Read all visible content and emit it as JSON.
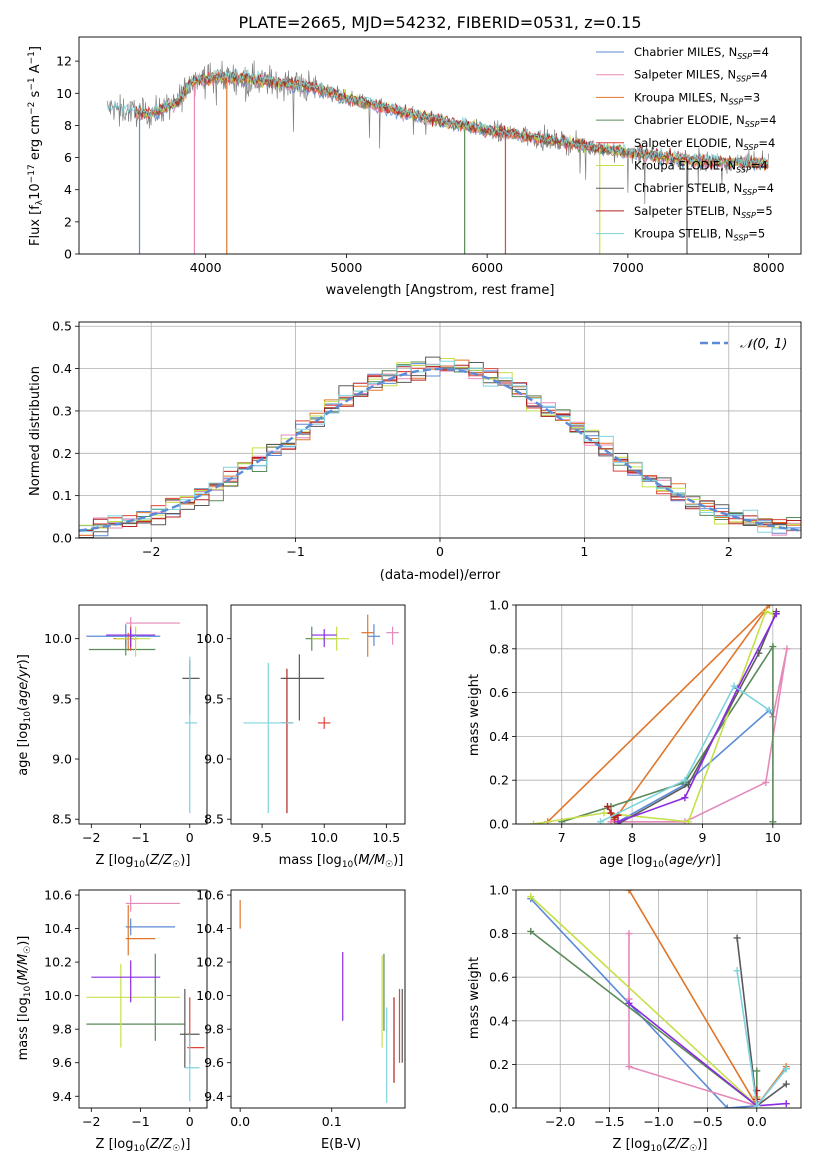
{
  "title": "PLATE=2665, MJD=54232, FIBERID=0531, z=0.15",
  "colors": [
    "#5b8bd6",
    "#e58ab9",
    "#e0762b",
    "#5a8a5a",
    "#e0443c",
    "#c6e04b",
    "#5a5a5a",
    "#b22222",
    "#7fd3dd"
  ],
  "chart_data": [
    {
      "id": "spectrum",
      "type": "line",
      "title": "PLATE=2665, MJD=54232, FIBERID=0531, z=0.15",
      "xlabel": "wavelength [Angstrom, rest frame]",
      "ylabel": "Flux [f_λ 10^-17 erg cm^-2 s^-1 A^-1]",
      "xlim": [
        3100,
        8230
      ],
      "ylim": [
        0,
        13.5
      ],
      "xticks": [
        4000,
        5000,
        6000,
        7000,
        8000
      ],
      "yticks": [
        0,
        2,
        4,
        6,
        8,
        10,
        12
      ],
      "grid": false,
      "legend": "top-right",
      "series": [
        {
          "name": "Chabrier MILES, N_SSP=4",
          "color": "#5b8bd6"
        },
        {
          "name": "Salpeter MILES, N_SSP=4",
          "color": "#e58ab9"
        },
        {
          "name": "Kroupa MILES, N_SSP=3",
          "color": "#e0762b"
        },
        {
          "name": "Chabrier ELODIE, N_SSP=4",
          "color": "#5a8a5a"
        },
        {
          "name": "Salpeter ELODIE, N_SSP=4",
          "color": "#e0443c"
        },
        {
          "name": "Kroupa ELODIE, N_SSP=4",
          "color": "#c6e04b"
        },
        {
          "name": "Chabrier STELIB, N_SSP=4",
          "color": "#5a5a5a"
        },
        {
          "name": "Salpeter STELIB, N_SSP=5",
          "color": "#b22222"
        },
        {
          "name": "Kroupa STELIB, N_SSP=5",
          "color": "#7fd3dd"
        }
      ],
      "data_color": "#808080",
      "continuum": [
        [
          3300,
          9.1
        ],
        [
          3600,
          8.7
        ],
        [
          3800,
          9.4
        ],
        [
          3900,
          10.8
        ],
        [
          4100,
          11.0
        ],
        [
          4400,
          10.8
        ],
        [
          4800,
          10.3
        ],
        [
          5000,
          9.7
        ],
        [
          5500,
          8.6
        ],
        [
          6000,
          7.7
        ],
        [
          6500,
          7.0
        ],
        [
          7000,
          6.3
        ],
        [
          7500,
          5.8
        ],
        [
          8000,
          5.6
        ]
      ]
    },
    {
      "id": "residuals",
      "type": "line",
      "xlabel": "(data-model)/error",
      "ylabel": "Normed distribution",
      "xlim": [
        -2.5,
        2.5
      ],
      "ylim": [
        0,
        0.51
      ],
      "xticks": [
        -2,
        -1,
        0,
        1,
        2
      ],
      "yticks": [
        0.0,
        0.1,
        0.2,
        0.3,
        0.4,
        0.5
      ],
      "grid": true,
      "legend": "top-right",
      "legend_label": "N(0,1)",
      "reference_curve": "standard normal"
    },
    {
      "id": "age-vs-Z",
      "type": "scatter",
      "xlabel": "Z [log10(Z/Z☉)]",
      "ylabel": "age  [log10(age/yr)]",
      "xlim": [
        -2.25,
        0.35
      ],
      "ylim": [
        8.46,
        10.28
      ],
      "xticks": [
        -2,
        -1,
        0
      ],
      "yticks": [
        8.5,
        9.0,
        9.5,
        10.0
      ],
      "points": [
        {
          "x": -1.3,
          "y": 10.02,
          "xerr": [
            0.8,
            0.7
          ],
          "yerr": [
            0.08,
            0.1
          ],
          "color": "#5b8bd6"
        },
        {
          "x": -1.2,
          "y": 10.13,
          "xerr": [
            0.1,
            1.0
          ],
          "yerr": [
            0.05,
            0.05
          ],
          "color": "#e58ab9"
        },
        {
          "x": -1.25,
          "y": 10.0,
          "xerr": [
            0.3,
            0.2
          ],
          "yerr": [
            0.1,
            0.05
          ],
          "color": "#e0762b"
        },
        {
          "x": -1.3,
          "y": 9.91,
          "xerr": [
            0.75,
            0.6
          ],
          "yerr": [
            0.05,
            0.1
          ],
          "color": "#5a8a5a"
        },
        {
          "x": -1.2,
          "y": 10.0,
          "xerr": [
            0.1,
            0.1
          ],
          "yerr": [
            0.1,
            0.1
          ],
          "color": "#e0443c"
        },
        {
          "x": -1.1,
          "y": 10.0,
          "xerr": [
            0.4,
            0.3
          ],
          "yerr": [
            0.15,
            0.1
          ],
          "color": "#c6e04b"
        },
        {
          "x": 0.0,
          "y": 9.67,
          "xerr": [
            0.15,
            0.2
          ],
          "yerr": [
            0.3,
            0.15
          ],
          "color": "#5a5a5a"
        },
        {
          "x": -1.2,
          "y": 10.03,
          "xerr": [
            0.5,
            0.5
          ],
          "yerr": [
            0.1,
            0.05
          ],
          "color": "#8a2be2"
        },
        {
          "x": 0.0,
          "y": 9.3,
          "xerr": [
            0.1,
            0.15
          ],
          "yerr": [
            0.75,
            0.55
          ],
          "color": "#7fd3dd"
        }
      ]
    },
    {
      "id": "age-vs-mass",
      "type": "scatter",
      "xlabel": "mass [log10(M/M☉)]",
      "ylabel": "",
      "xlim": [
        9.25,
        10.65
      ],
      "ylim": [
        8.46,
        10.28
      ],
      "xticks": [
        9.5,
        10.0,
        10.5
      ],
      "yticks": [
        8.5,
        9.0,
        9.5,
        10.0
      ],
      "points": [
        {
          "x": 10.4,
          "y": 10.02,
          "xerr": [
            0.05,
            0.05
          ],
          "yerr": [
            0.08,
            0.1
          ],
          "color": "#5b8bd6"
        },
        {
          "x": 10.55,
          "y": 10.05,
          "xerr": [
            0.05,
            0.05
          ],
          "yerr": [
            0.1,
            0.05
          ],
          "color": "#e58ab9"
        },
        {
          "x": 10.35,
          "y": 10.05,
          "xerr": [
            0.05,
            0.05
          ],
          "yerr": [
            0.2,
            0.15
          ],
          "color": "#e0762b"
        },
        {
          "x": 9.9,
          "y": 10.0,
          "xerr": [
            0.05,
            0.2
          ],
          "yerr": [
            0.1,
            0.1
          ],
          "color": "#5a8a5a"
        },
        {
          "x": 10.0,
          "y": 9.3,
          "xerr": [
            0.05,
            0.05
          ],
          "yerr": [
            0.05,
            0.05
          ],
          "color": "#e0443c"
        },
        {
          "x": 10.1,
          "y": 10.0,
          "xerr": [
            0.2,
            0.1
          ],
          "yerr": [
            0.1,
            0.1
          ],
          "color": "#c6e04b"
        },
        {
          "x": 9.8,
          "y": 9.67,
          "xerr": [
            0.15,
            0.2
          ],
          "yerr": [
            0.35,
            0.2
          ],
          "color": "#5a5a5a"
        },
        {
          "x": 9.7,
          "y": 9.3,
          "xerr": [
            0.05,
            0.05
          ],
          "yerr": [
            0.75,
            0.45
          ],
          "color": "#b22222"
        },
        {
          "x": 10.0,
          "y": 10.03,
          "xerr": [
            0.1,
            0.1
          ],
          "yerr": [
            0.1,
            0.05
          ],
          "color": "#8a2be2"
        },
        {
          "x": 9.55,
          "y": 9.3,
          "xerr": [
            0.2,
            0.2
          ],
          "yerr": [
            0.75,
            0.5
          ],
          "color": "#7fd3dd"
        }
      ]
    },
    {
      "id": "weight-vs-age",
      "type": "line",
      "xlabel": "age  [log10(age/yr)]",
      "ylabel": "mass weight",
      "xlim": [
        6.35,
        10.4
      ],
      "ylim": [
        0,
        1
      ],
      "xticks": [
        7,
        8,
        9,
        10
      ],
      "yticks": [
        0.0,
        0.2,
        0.4,
        0.6,
        0.8,
        1.0
      ],
      "grid": true,
      "series": [
        {
          "color": "#5b8bd6",
          "x": [
            7.8,
            8.75,
            9.95,
            10.0
          ],
          "y": [
            0.01,
            0.18,
            0.52,
            0.49
          ]
        },
        {
          "color": "#e58ab9",
          "x": [
            7.7,
            8.75,
            9.9,
            10.2,
            10.0
          ],
          "y": [
            0.01,
            0.01,
            0.19,
            0.8,
            0.49
          ]
        },
        {
          "color": "#e0762b",
          "x": [
            6.8,
            9.95,
            7.75
          ],
          "y": [
            0.01,
            1.0,
            0.02
          ]
        },
        {
          "color": "#5a8a5a",
          "x": [
            7.0,
            7.7,
            8.75,
            10.0,
            10.0
          ],
          "y": [
            0.01,
            0.08,
            0.19,
            0.81,
            0.01
          ]
        },
        {
          "color": "#e0443c",
          "x": [
            7.7,
            7.75
          ],
          "y": [
            0.05,
            0.02
          ]
        },
        {
          "color": "#c6e04b",
          "x": [
            6.6,
            7.6,
            8.8,
            9.9,
            10.0
          ],
          "y": [
            0.0,
            0.05,
            0.01,
            0.97,
            0.96
          ]
        },
        {
          "color": "#5a5a5a",
          "x": [
            7.8,
            8.8,
            9.8,
            10.05
          ],
          "y": [
            0.0,
            0.18,
            0.78,
            0.97
          ]
        },
        {
          "color": "#b22222",
          "x": [
            7.65,
            7.7,
            7.75,
            7.8
          ],
          "y": [
            0.08,
            0.05,
            0.03,
            0.04
          ]
        },
        {
          "color": "#8a2be2",
          "x": [
            7.8,
            8.75,
            9.5,
            10.05
          ],
          "y": [
            0.01,
            0.12,
            0.62,
            0.96
          ]
        },
        {
          "color": "#7fd3dd",
          "x": [
            7.55,
            8.75,
            9.45,
            9.95
          ],
          "y": [
            0.01,
            0.2,
            0.63,
            0.52
          ]
        }
      ]
    },
    {
      "id": "mass-vs-Z",
      "type": "scatter",
      "xlabel": "Z [log10(Z/Z☉)]",
      "ylabel": "mass [log10(M/M☉)]",
      "xlim": [
        -2.25,
        0.35
      ],
      "ylim": [
        9.33,
        10.63
      ],
      "xticks": [
        -2,
        -1,
        0
      ],
      "yticks": [
        9.4,
        9.6,
        9.8,
        10.0,
        10.2,
        10.4,
        10.6
      ],
      "points": [
        {
          "x": -1.2,
          "y": 10.41,
          "xerr": [
            0.1,
            0.9
          ],
          "yerr": [
            0.05,
            0.05
          ],
          "color": "#5b8bd6"
        },
        {
          "x": -1.2,
          "y": 10.55,
          "xerr": [
            0.1,
            1.0
          ],
          "yerr": [
            0.05,
            0.05
          ],
          "color": "#e58ab9"
        },
        {
          "x": -1.25,
          "y": 10.34,
          "xerr": [
            0.05,
            0.55
          ],
          "yerr": [
            0.1,
            0.2
          ],
          "color": "#e0762b"
        },
        {
          "x": -0.7,
          "y": 9.83,
          "xerr": [
            1.4,
            0.6
          ],
          "yerr": [
            0.1,
            0.42
          ],
          "color": "#5a8a5a"
        },
        {
          "x": 0.0,
          "y": 9.69,
          "xerr": [
            0.05,
            0.3
          ],
          "yerr": [
            0.1,
            0.3
          ],
          "color": "#e0443c"
        },
        {
          "x": -1.4,
          "y": 9.99,
          "xerr": [
            0.7,
            1.2
          ],
          "yerr": [
            0.3,
            0.2
          ],
          "color": "#c6e04b"
        },
        {
          "x": -0.1,
          "y": 9.77,
          "xerr": [
            0.1,
            0.3
          ],
          "yerr": [
            0.2,
            0.27
          ],
          "color": "#5a5a5a"
        },
        {
          "x": -1.2,
          "y": 10.11,
          "xerr": [
            0.8,
            0.6
          ],
          "yerr": [
            0.15,
            0.1
          ],
          "color": "#8a2be2"
        },
        {
          "x": 0.0,
          "y": 9.57,
          "xerr": [
            0.1,
            0.2
          ],
          "yerr": [
            0.2,
            0.2
          ],
          "color": "#7fd3dd"
        }
      ]
    },
    {
      "id": "mass-vs-EBV",
      "type": "scatter",
      "xlabel": "E(B-V)",
      "ylabel": "",
      "xlim": [
        -0.01,
        0.18
      ],
      "ylim": [
        9.33,
        10.63
      ],
      "xticks": [
        0.0,
        0.1
      ],
      "yticks": [
        9.4,
        9.6,
        9.8,
        10.0,
        10.2,
        10.4,
        10.6
      ],
      "points": [
        {
          "x": 0.0,
          "y": 10.47,
          "xerr": [
            0,
            0
          ],
          "yerr": [
            0.07,
            0.1
          ],
          "color": "#e0762b"
        },
        {
          "x": 0.112,
          "y": 10.03,
          "xerr": [
            0,
            0
          ],
          "yerr": [
            0.18,
            0.23
          ],
          "color": "#8a2be2"
        },
        {
          "x": 0.155,
          "y": 9.97,
          "xerr": [
            0,
            0
          ],
          "yerr": [
            0.28,
            0.27
          ],
          "color": "#c6e04b"
        },
        {
          "x": 0.157,
          "y": 9.99,
          "xerr": [
            0,
            0
          ],
          "yerr": [
            0.2,
            0.26
          ],
          "color": "#5a8a5a"
        },
        {
          "x": 0.16,
          "y": 9.63,
          "xerr": [
            0,
            0
          ],
          "yerr": [
            0.27,
            0.3
          ],
          "color": "#7fd3dd"
        },
        {
          "x": 0.168,
          "y": 9.76,
          "xerr": [
            0,
            0
          ],
          "yerr": [
            0.28,
            0.23
          ],
          "color": "#b22222"
        },
        {
          "x": 0.174,
          "y": 9.82,
          "xerr": [
            0,
            0
          ],
          "yerr": [
            0.22,
            0.22
          ],
          "color": "#e0443c"
        },
        {
          "x": 0.177,
          "y": 9.82,
          "xerr": [
            0,
            0
          ],
          "yerr": [
            0.22,
            0.22
          ],
          "color": "#5a5a5a"
        }
      ]
    },
    {
      "id": "weight-vs-Z",
      "type": "line",
      "xlabel": "Z [log10(Z/Z☉)]",
      "ylabel": "mass weight",
      "xlim": [
        -2.45,
        0.45
      ],
      "ylim": [
        0,
        1
      ],
      "xticks": [
        -2.0,
        -1.5,
        -1.0,
        -0.5,
        0.0
      ],
      "yticks": [
        0.0,
        0.2,
        0.4,
        0.6,
        0.8,
        1.0
      ],
      "grid": true,
      "series": [
        {
          "color": "#5b8bd6",
          "x": [
            -2.3,
            -0.3,
            0.0,
            0.3
          ],
          "y": [
            0.96,
            0.0,
            0.01,
            0.18
          ]
        },
        {
          "color": "#e58ab9",
          "x": [
            -1.3,
            -1.3,
            -1.3,
            0.0,
            0.0
          ],
          "y": [
            0.8,
            0.5,
            0.19,
            0.01,
            0.03
          ]
        },
        {
          "color": "#e0762b",
          "x": [
            -1.3,
            0.0,
            0.3
          ],
          "y": [
            1.0,
            0.01,
            0.19
          ]
        },
        {
          "color": "#5a8a5a",
          "x": [
            -2.3,
            0.0,
            0.0
          ],
          "y": [
            0.81,
            0.01,
            0.17
          ]
        },
        {
          "color": "#e0443c",
          "x": [
            0.0,
            0.0
          ],
          "y": [
            0.05,
            0.02
          ]
        },
        {
          "color": "#c6e04b",
          "x": [
            -2.3,
            0.0,
            0.0
          ],
          "y": [
            0.97,
            0.01,
            0.05
          ]
        },
        {
          "color": "#5a5a5a",
          "x": [
            -0.2,
            0.0,
            0.3
          ],
          "y": [
            0.78,
            0.01,
            0.11
          ]
        },
        {
          "color": "#b22222",
          "x": [
            0.0,
            0.0
          ],
          "y": [
            0.08,
            0.04
          ]
        },
        {
          "color": "#8a2be2",
          "x": [
            0.0,
            0.3,
            0.0,
            -1.3
          ],
          "y": [
            0.01,
            0.02,
            0.01,
            0.48
          ]
        },
        {
          "color": "#7fd3dd",
          "x": [
            -0.2,
            0.0,
            0.3
          ],
          "y": [
            0.63,
            0.01,
            0.18
          ]
        }
      ]
    }
  ]
}
